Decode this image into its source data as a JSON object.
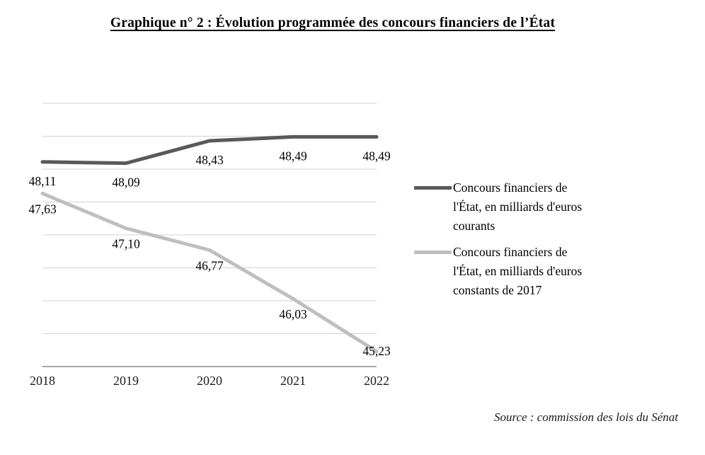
{
  "title": "Graphique n° 2 : Évolution programmée des concours financiers de l’État",
  "source": "Source : commission des lois du Sénat",
  "colors": {
    "series_courants": "#595959",
    "series_constants": "#bfbfbf",
    "gridline": "#d2d2d2",
    "axis": "#8c8c8c",
    "label_text": "#000000",
    "axis_text": "#1a1a1a"
  },
  "legend": {
    "items": [
      {
        "label": "Concours financiers de\nl'État, en milliards d'euros\ncourants"
      },
      {
        "label": "Concours financiers de\nl'État, en milliards d'euros\nconstants de 2017"
      }
    ]
  },
  "chart_data": {
    "type": "line",
    "categories": [
      "2018",
      "2019",
      "2020",
      "2021",
      "2022"
    ],
    "series": [
      {
        "name": "Concours financiers de l'État, en milliards d'euros courants",
        "values": [
          48.11,
          48.09,
          48.43,
          48.49,
          48.49
        ],
        "labels": [
          "48,11",
          "48,09",
          "48,43",
          "48,49",
          "48,49"
        ],
        "color": "#595959"
      },
      {
        "name": "Concours financiers de l'État, en milliards d'euros constants de 2017",
        "values": [
          47.63,
          47.1,
          46.77,
          46.03,
          45.23
        ],
        "labels": [
          "47,63",
          "47,10",
          "46,77",
          "46,03",
          "45,23"
        ],
        "color": "#bfbfbf"
      }
    ],
    "ylim": [
      45.0,
      49.0
    ],
    "ytick": 0.5,
    "grid": true,
    "legend_position": "right",
    "xlabel": "",
    "ylabel": ""
  }
}
